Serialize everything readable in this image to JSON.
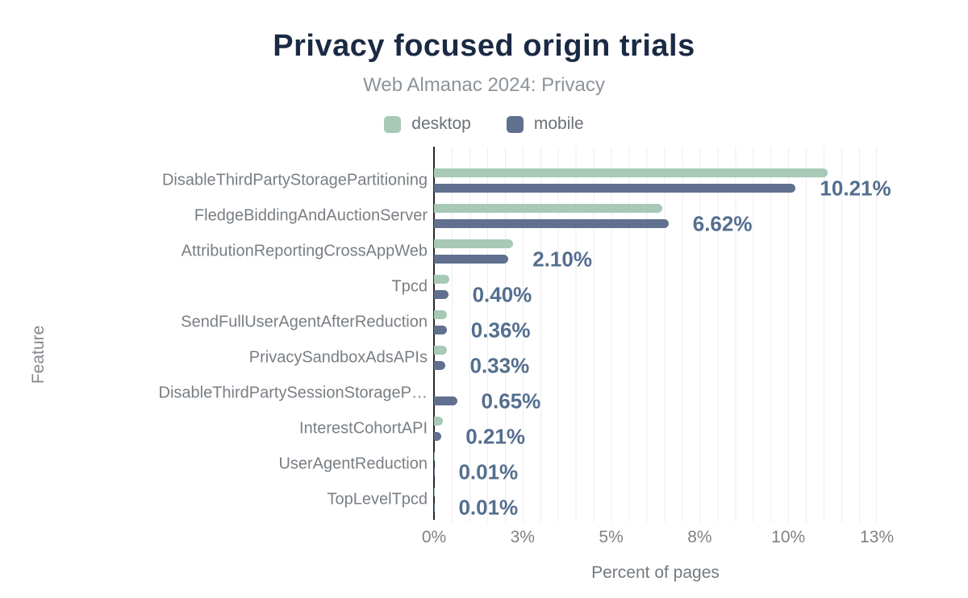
{
  "header": {
    "title": "Privacy focused origin trials",
    "subtitle": "Web Almanac 2024: Privacy"
  },
  "colors": {
    "desktop": "#a7c9b6",
    "mobile": "#60708e",
    "value_label": "#546e8e",
    "title": "#1b2a44",
    "subtitle": "#8d939a",
    "axis_text": "#7d8287",
    "gridline": "#ededf0",
    "axis_line": "#27282a"
  },
  "legend": [
    {
      "label": "desktop",
      "color": "#a7c9b6"
    },
    {
      "label": "mobile",
      "color": "#60708e"
    }
  ],
  "chart_data": {
    "type": "bar",
    "orientation": "horizontal",
    "title": "Privacy focused origin trials",
    "subtitle": "Web Almanac 2024: Privacy",
    "xlabel": "Percent of pages",
    "ylabel": "Feature",
    "xlim": [
      0,
      12.5
    ],
    "grid": "minor vertical gridlines every 0.5%",
    "legend_position": "top",
    "x_ticks": [
      {
        "value": 0,
        "label": "0%"
      },
      {
        "value": 2.5,
        "label": "3%"
      },
      {
        "value": 5,
        "label": "5%"
      },
      {
        "value": 7.5,
        "label": "8%"
      },
      {
        "value": 10,
        "label": "10%"
      },
      {
        "value": 12.5,
        "label": "13%"
      }
    ],
    "categories": [
      "DisableThirdPartyStoragePartitioning",
      "FledgeBiddingAndAuctionServer",
      "AttributionReportingCrossAppWeb",
      "Tpcd",
      "SendFullUserAgentAfterReduction",
      "PrivacySandboxAdsAPIs",
      "DisableThirdPartySessionStorageP…",
      "InterestCohortAPI",
      "UserAgentReduction",
      "TopLevelTpcd"
    ],
    "series": [
      {
        "name": "desktop",
        "color": "#a7c9b6",
        "values": [
          11.1,
          6.45,
          2.23,
          0.43,
          0.36,
          0.36,
          0,
          0.26,
          0.01,
          0.01
        ]
      },
      {
        "name": "mobile",
        "color": "#60708e",
        "values": [
          10.21,
          6.62,
          2.1,
          0.4,
          0.36,
          0.33,
          0.65,
          0.21,
          0.01,
          0.01
        ]
      }
    ],
    "data_labels": [
      "10.21%",
      "6.62%",
      "2.10%",
      "0.40%",
      "0.36%",
      "0.33%",
      "0.65%",
      "0.21%",
      "0.01%",
      "0.01%"
    ],
    "data_labels_source": "mobile"
  }
}
